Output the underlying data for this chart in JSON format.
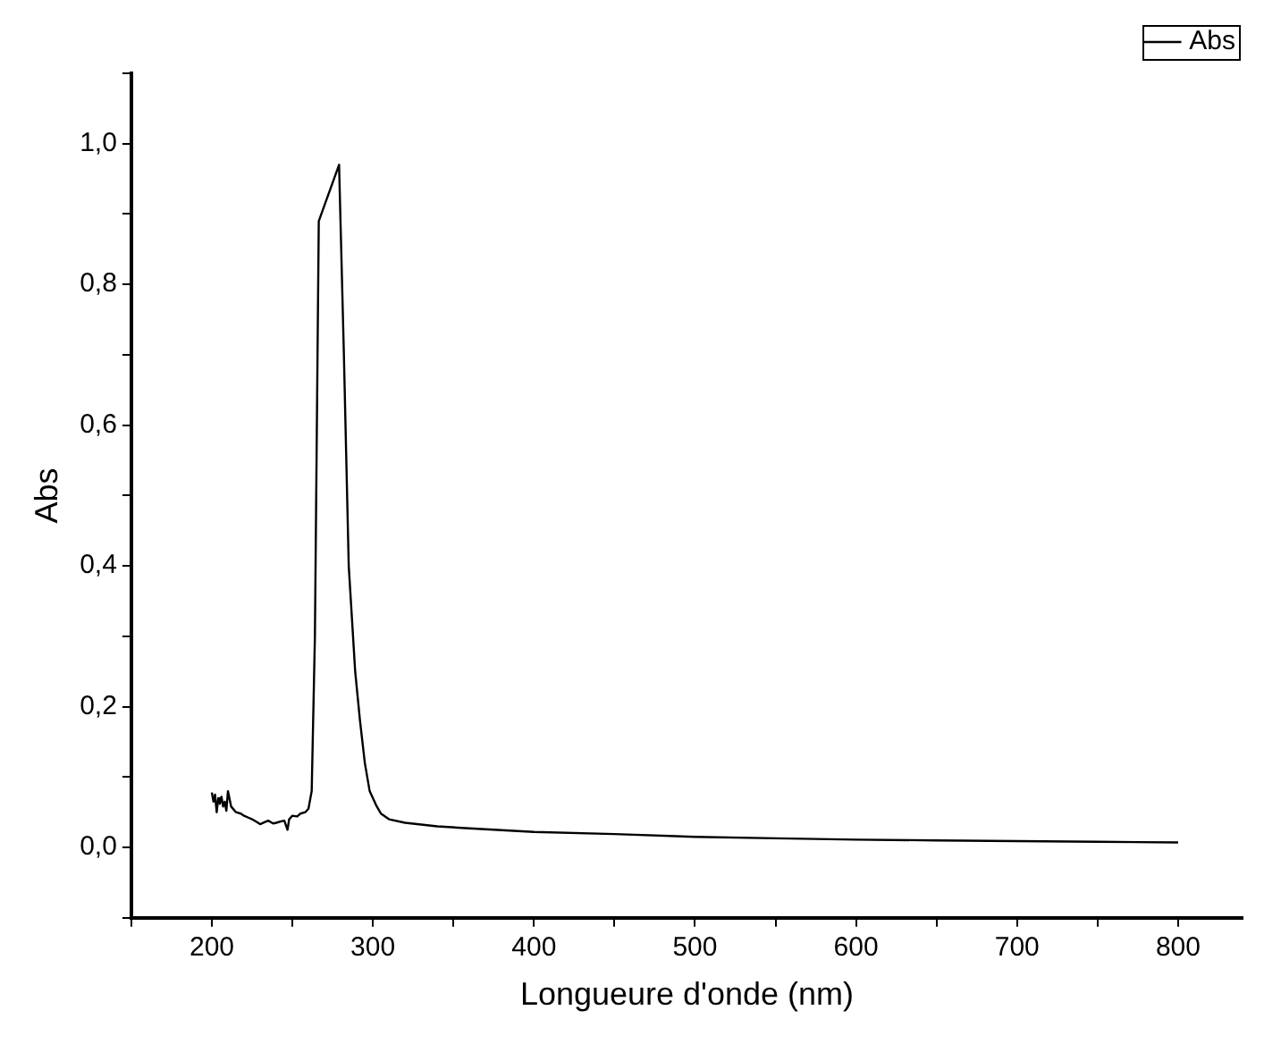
{
  "chart_data": {
    "type": "line",
    "xlabel": "Longueure d'onde (nm)",
    "ylabel": "Abs",
    "legend": "top right",
    "grid": false,
    "marker": "none",
    "line_style": "solid",
    "xlim": [
      150,
      840
    ],
    "ylim": [
      -0.1,
      1.1
    ],
    "xticks": [
      {
        "value": 150,
        "label": null
      },
      200,
      {
        "value": 250,
        "label": null
      },
      300,
      {
        "value": 350,
        "label": null
      },
      400,
      {
        "value": 450,
        "label": null
      },
      500,
      {
        "value": 550,
        "label": null
      },
      600,
      {
        "value": 650,
        "label": null
      },
      700,
      {
        "value": 750,
        "label": null
      },
      800
    ],
    "yticks": [
      {
        "value": -0.1,
        "label": null
      },
      {
        "value": 0,
        "label": "0,0"
      },
      {
        "value": 0.1,
        "label": null
      },
      {
        "value": 0.2,
        "label": "0,2"
      },
      {
        "value": 0.3,
        "label": null
      },
      {
        "value": 0.4,
        "label": "0,4"
      },
      {
        "value": 0.5,
        "label": null
      },
      {
        "value": 0.6,
        "label": "0,6"
      },
      {
        "value": 0.7,
        "label": null
      },
      {
        "value": 0.8,
        "label": "0,8"
      },
      {
        "value": 0.9,
        "label": null
      },
      {
        "value": 1.0,
        "label": "1,0"
      },
      {
        "value": 1.1,
        "label": null
      }
    ],
    "series": [
      {
        "name": "Abs",
        "color": "#000000",
        "x": [
          200,
          201,
          202,
          203,
          204,
          205,
          206,
          207,
          208,
          209,
          210,
          212,
          215,
          218,
          220,
          223,
          225,
          228,
          230,
          233,
          235,
          238,
          240,
          243,
          245,
          247,
          248,
          250,
          253,
          255,
          258,
          260,
          262,
          264,
          266.4,
          279,
          282,
          285,
          289,
          292,
          295,
          298,
          302,
          305,
          310,
          320,
          340,
          360,
          400,
          450,
          500,
          550,
          600,
          650,
          700,
          750,
          800
        ],
        "values": [
          0.078,
          0.065,
          0.075,
          0.05,
          0.07,
          0.062,
          0.072,
          0.058,
          0.065,
          0.052,
          0.08,
          0.058,
          0.05,
          0.048,
          0.045,
          0.042,
          0.04,
          0.036,
          0.033,
          0.036,
          0.038,
          0.034,
          0.035,
          0.037,
          0.038,
          0.025,
          0.04,
          0.045,
          0.044,
          0.048,
          0.05,
          0.055,
          0.08,
          0.3,
          0.89,
          0.97,
          0.7,
          0.4,
          0.25,
          0.18,
          0.12,
          0.08,
          0.06,
          0.048,
          0.04,
          0.035,
          0.03,
          0.027,
          0.022,
          0.019,
          0.015,
          0.013,
          0.011,
          0.01,
          0.009,
          0.008,
          0.007
        ]
      }
    ]
  }
}
